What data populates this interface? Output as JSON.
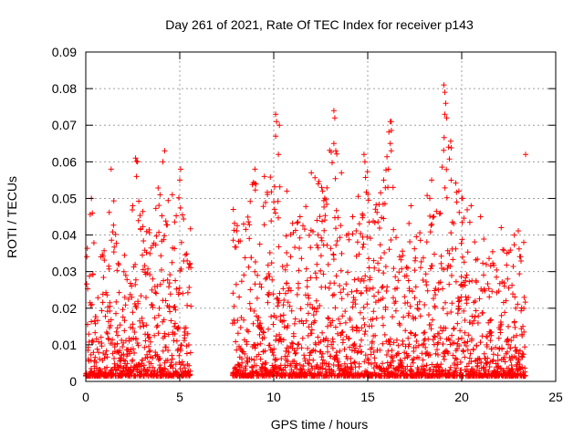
{
  "chart_data": {
    "type": "scatter",
    "title": "Day 261 of 2021, Rate Of TEC Index for receiver p143",
    "xlabel": "GPS time / hours",
    "ylabel": "ROTI / TECUs",
    "xlim": [
      0,
      25
    ],
    "ylim": [
      0,
      0.09
    ],
    "x_ticks": [
      0,
      5,
      10,
      15,
      20,
      25
    ],
    "x_tick_labels": [
      "0",
      "5",
      "10",
      "15",
      "20",
      "25"
    ],
    "y_ticks": [
      0,
      0.01,
      0.02,
      0.03,
      0.04,
      0.05,
      0.06,
      0.07,
      0.08,
      0.09
    ],
    "y_tick_labels": [
      "0",
      "0.01",
      "0.02",
      "0.03",
      "0.04",
      "0.05",
      "0.06",
      "0.07",
      "0.08",
      "0.09"
    ],
    "grid": true,
    "marker": "+",
    "series_color": "#ff0000",
    "data_gap_hours": [
      5.6,
      7.8
    ],
    "series": [
      {
        "name": "ROTI",
        "envelope": [
          [
            0.0,
            0.035
          ],
          [
            0.3,
            0.05
          ],
          [
            0.6,
            0.03
          ],
          [
            1.0,
            0.035
          ],
          [
            1.4,
            0.058
          ],
          [
            1.8,
            0.03
          ],
          [
            2.2,
            0.035
          ],
          [
            2.7,
            0.061
          ],
          [
            3.1,
            0.045
          ],
          [
            3.5,
            0.04
          ],
          [
            3.9,
            0.055
          ],
          [
            4.2,
            0.063
          ],
          [
            4.6,
            0.045
          ],
          [
            5.0,
            0.058
          ],
          [
            5.5,
            0.04
          ],
          [
            7.9,
            0.047
          ],
          [
            8.5,
            0.04
          ],
          [
            9.0,
            0.058
          ],
          [
            9.5,
            0.045
          ],
          [
            10.1,
            0.073
          ],
          [
            10.5,
            0.05
          ],
          [
            11.0,
            0.045
          ],
          [
            11.5,
            0.04
          ],
          [
            12.0,
            0.057
          ],
          [
            12.6,
            0.052
          ],
          [
            13.2,
            0.073
          ],
          [
            13.7,
            0.045
          ],
          [
            14.2,
            0.04
          ],
          [
            14.8,
            0.062
          ],
          [
            15.3,
            0.05
          ],
          [
            15.8,
            0.055
          ],
          [
            16.2,
            0.071
          ],
          [
            16.6,
            0.05
          ],
          [
            17.0,
            0.04
          ],
          [
            17.5,
            0.045
          ],
          [
            18.0,
            0.05
          ],
          [
            18.4,
            0.055
          ],
          [
            18.7,
            0.045
          ],
          [
            19.1,
            0.081
          ],
          [
            19.5,
            0.06
          ],
          [
            20.0,
            0.05
          ],
          [
            20.5,
            0.045
          ],
          [
            21.0,
            0.04
          ],
          [
            21.5,
            0.035
          ],
          [
            22.0,
            0.042
          ],
          [
            22.5,
            0.035
          ],
          [
            23.0,
            0.04
          ],
          [
            23.4,
            0.038
          ]
        ],
        "outliers": [
          [
            19.05,
            0.081
          ],
          [
            19.1,
            0.079
          ],
          [
            19.15,
            0.076
          ],
          [
            19.1,
            0.073
          ],
          [
            19.2,
            0.072
          ],
          [
            13.2,
            0.074
          ],
          [
            13.25,
            0.072
          ],
          [
            13.2,
            0.065
          ],
          [
            13.3,
            0.063
          ],
          [
            10.1,
            0.073
          ],
          [
            10.15,
            0.071
          ],
          [
            10.3,
            0.07
          ],
          [
            10.1,
            0.067
          ],
          [
            10.25,
            0.062
          ],
          [
            16.2,
            0.071
          ],
          [
            16.25,
            0.071
          ],
          [
            16.2,
            0.065
          ],
          [
            16.25,
            0.063
          ],
          [
            16.1,
            0.058
          ],
          [
            23.4,
            0.062
          ],
          [
            19.3,
            0.064
          ],
          [
            4.2,
            0.063
          ],
          [
            4.1,
            0.06
          ],
          [
            2.65,
            0.061
          ],
          [
            2.75,
            0.06
          ],
          [
            2.7,
            0.056
          ],
          [
            1.35,
            0.058
          ],
          [
            5.05,
            0.058
          ],
          [
            5.0,
            0.055
          ],
          [
            9.0,
            0.058
          ],
          [
            9.5,
            0.056
          ],
          [
            12.0,
            0.057
          ],
          [
            12.6,
            0.052
          ],
          [
            12.55,
            0.053
          ],
          [
            13.6,
            0.057
          ],
          [
            15.85,
            0.055
          ],
          [
            14.8,
            0.062
          ],
          [
            14.85,
            0.06
          ],
          [
            16.35,
            0.053
          ],
          [
            18.4,
            0.055
          ],
          [
            18.3,
            0.05
          ],
          [
            20.0,
            0.05
          ],
          [
            20.5,
            0.048
          ],
          [
            0.3,
            0.05
          ],
          [
            0.35,
            0.046
          ],
          [
            2.5,
            0.048
          ],
          [
            3.95,
            0.051
          ],
          [
            4.6,
            0.051
          ],
          [
            7.85,
            0.047
          ],
          [
            8.4,
            0.043
          ],
          [
            10.7,
            0.052
          ],
          [
            11.4,
            0.045
          ],
          [
            12.3,
            0.044
          ],
          [
            14.2,
            0.045
          ],
          [
            17.3,
            0.048
          ],
          [
            21.0,
            0.045
          ],
          [
            22.1,
            0.042
          ],
          [
            22.8,
            0.04
          ],
          [
            23.3,
            0.038
          ]
        ]
      }
    ]
  }
}
